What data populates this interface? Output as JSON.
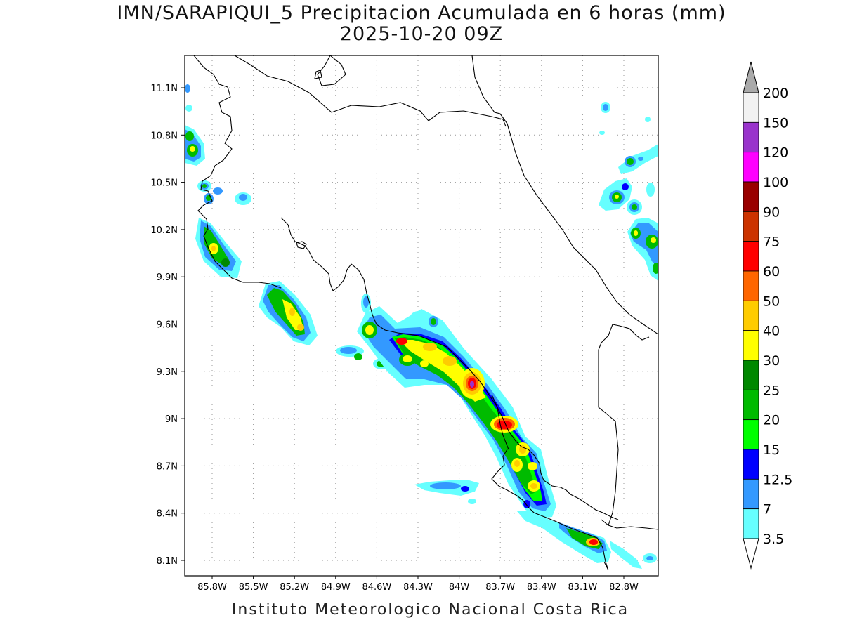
{
  "title": {
    "line1": "IMN/SARAPIQUI_5 Precipitacion Acumulada en 6 horas (mm)",
    "line2": "2025-10-20 09Z"
  },
  "footer": "Instituto Meteorologico Nacional Costa Rica",
  "map": {
    "lon_range": [
      -86.0,
      -82.6
    ],
    "lat_range": [
      8.0,
      11.3
    ],
    "lat_ticks": [
      "11.1N",
      "10.8N",
      "10.5N",
      "10.2N",
      "9.9N",
      "9.6N",
      "9.3N",
      "9N",
      "8.7N",
      "8.4N",
      "8.1N"
    ],
    "lon_ticks": [
      "85.8W",
      "85.5W",
      "85.2W",
      "84.9W",
      "84.6W",
      "84.3W",
      "84W",
      "83.7W",
      "83.4W",
      "83.1W",
      "82.8W"
    ],
    "grid": "dotted"
  },
  "colorbar": {
    "labels": [
      "200",
      "150",
      "120",
      "100",
      "90",
      "75",
      "60",
      "50",
      "40",
      "30",
      "25",
      "20",
      "15",
      "12.5",
      "7",
      "3.5"
    ],
    "colors_top_to_bottom": [
      "#f2f2f2",
      "#9933cc",
      "#ff00ff",
      "#990000",
      "#cc3300",
      "#ff0000",
      "#ff6600",
      "#ffcc00",
      "#ffff00",
      "#008800",
      "#00bb00",
      "#00ff00",
      "#0000ff",
      "#3399ff",
      "#66ffff"
    ],
    "over_color": "#aaaaaa",
    "under_color": "#ffffff"
  }
}
